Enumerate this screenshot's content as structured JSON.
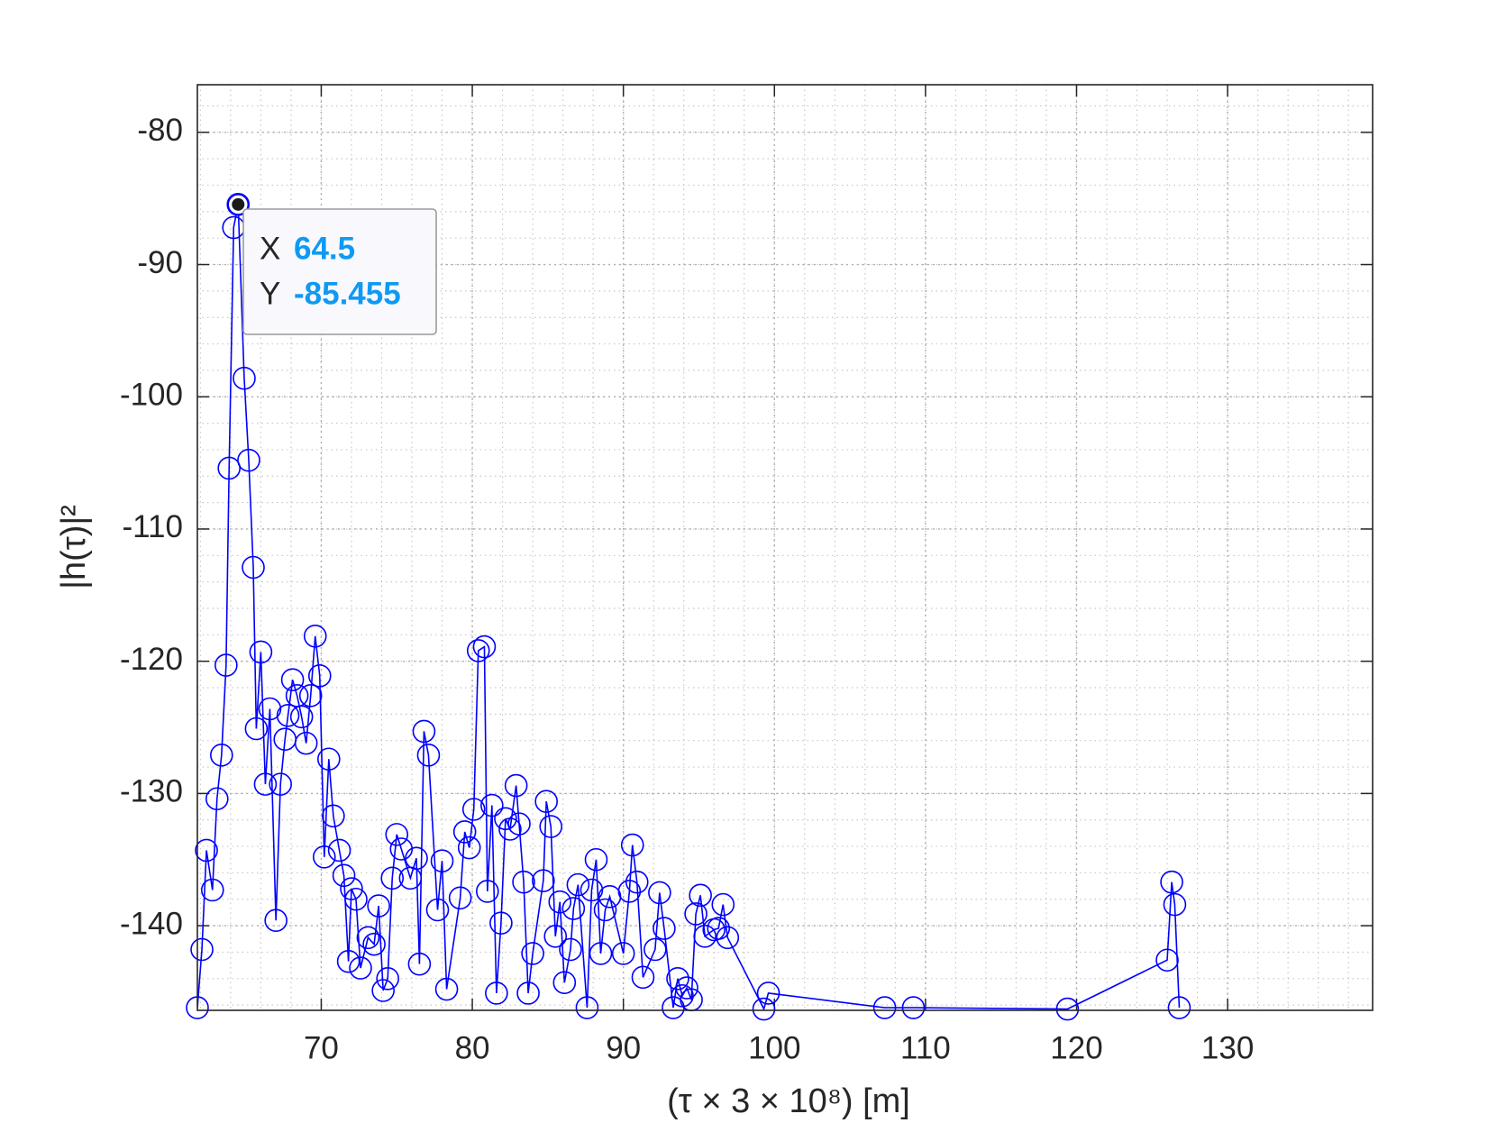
{
  "chart_data": {
    "type": "line",
    "xlabel": "(τ × 3 × 10⁸) [m]",
    "ylabel": "|h(τ)|²",
    "x": [
      61.8,
      62.1,
      62.4,
      62.8,
      63.1,
      63.4,
      63.7,
      63.9,
      64.2,
      64.5,
      64.9,
      65.2,
      65.5,
      65.7,
      66.0,
      66.3,
      66.6,
      67.0,
      67.3,
      67.6,
      67.8,
      68.1,
      68.4,
      68.7,
      69.0,
      69.3,
      69.6,
      69.9,
      70.2,
      70.5,
      70.8,
      71.2,
      71.5,
      71.8,
      72.0,
      72.3,
      72.6,
      73.1,
      73.5,
      73.8,
      74.1,
      74.4,
      74.7,
      75.0,
      75.3,
      75.9,
      76.3,
      76.5,
      76.8,
      77.1,
      77.7,
      78.0,
      78.3,
      79.2,
      79.5,
      79.8,
      80.1,
      80.4,
      80.8,
      81.0,
      81.3,
      81.6,
      81.9,
      82.2,
      82.5,
      82.9,
      83.1,
      83.4,
      83.7,
      84.0,
      84.7,
      84.9,
      85.2,
      85.5,
      85.8,
      86.1,
      86.5,
      86.7,
      87.0,
      87.6,
      87.9,
      88.2,
      88.5,
      88.8,
      89.1,
      90.0,
      90.4,
      90.6,
      90.9,
      91.3,
      92.1,
      92.4,
      92.7,
      93.3,
      93.6,
      93.9,
      94.2,
      94.5,
      94.8,
      95.1,
      95.4,
      96.0,
      96.3,
      96.6,
      96.9,
      99.3,
      99.6,
      107.3,
      109.2,
      119.4,
      126.0,
      126.3,
      126.5,
      126.8
    ],
    "series": [
      {
        "color": "#0000ff",
        "values": [
          -146.2,
          -141.8,
          -134.3,
          -137.3,
          -130.4,
          -127.1,
          -120.3,
          -105.4,
          -87.2,
          -85.455,
          -98.6,
          -104.8,
          -112.9,
          -125.1,
          -119.3,
          -129.3,
          -123.6,
          -139.6,
          -129.3,
          -125.9,
          -124.1,
          -121.4,
          -122.6,
          -124.2,
          -126.2,
          -122.6,
          -118.1,
          -121.1,
          -134.8,
          -127.4,
          -131.7,
          -134.3,
          -136.2,
          -142.7,
          -137.2,
          -138.0,
          -143.2,
          -140.9,
          -141.4,
          -138.5,
          -144.9,
          -144.0,
          -136.4,
          -133.1,
          -134.2,
          -136.4,
          -134.9,
          -142.9,
          -125.3,
          -127.1,
          -138.8,
          -135.1,
          -144.8,
          -137.9,
          -132.9,
          -134.1,
          -131.2,
          -119.2,
          -118.9,
          -137.4,
          -130.9,
          -145.1,
          -139.8,
          -131.9,
          -132.7,
          -129.4,
          -132.3,
          -136.7,
          -145.1,
          -142.1,
          -136.6,
          -130.6,
          -132.5,
          -140.8,
          -138.2,
          -144.3,
          -141.8,
          -138.7,
          -136.9,
          -146.2,
          -137.3,
          -135.0,
          -142.1,
          -138.8,
          -137.8,
          -142.1,
          -137.4,
          -133.9,
          -136.7,
          -143.9,
          -141.8,
          -137.5,
          -140.2,
          -146.2,
          -144.0,
          -145.3,
          -144.7,
          -145.6,
          -139.1,
          -137.7,
          -140.8,
          -140.3,
          -140.2,
          -138.4,
          -140.9,
          -146.3,
          -145.1,
          -146.2,
          -146.2,
          -146.3,
          -142.6,
          -136.7,
          -138.4,
          -146.2
        ]
      }
    ],
    "xlim": [
      61.8,
      139.6
    ],
    "ylim": [
      -146.4,
      -76.4
    ],
    "xticks": [
      70,
      80,
      90,
      100,
      110,
      120,
      130
    ],
    "yticks": [
      -140,
      -130,
      -120,
      -110,
      -100,
      -90,
      -80
    ],
    "grid": true,
    "minor_grid": true,
    "datatip": {
      "x_name": "X",
      "y_name": "Y",
      "x": 64.5,
      "y": -85.455
    }
  }
}
